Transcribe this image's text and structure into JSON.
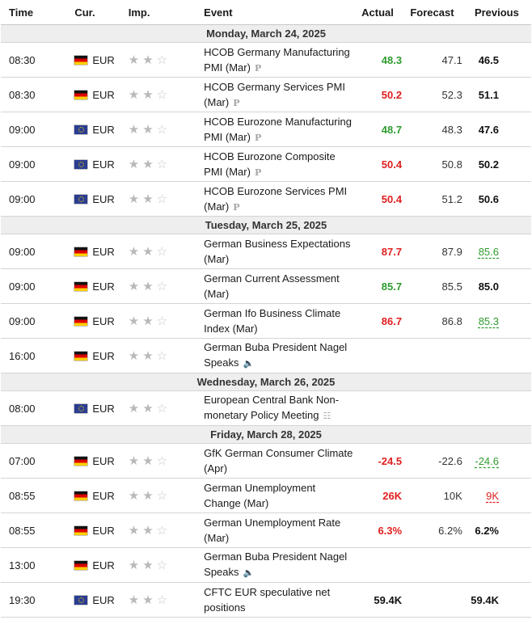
{
  "headers": {
    "time": "Time",
    "cur": "Cur.",
    "imp": "Imp.",
    "event": "Event",
    "actual": "Actual",
    "forecast": "Forecast",
    "previous": "Previous"
  },
  "days": [
    {
      "label": "Monday, March 24, 2025",
      "rows": [
        {
          "time": "08:30",
          "flag": "de",
          "cur": "EUR",
          "event": "HCOB Germany Manufacturing PMI (Mar)",
          "icon": "P",
          "actual": "48.3",
          "actual_trend": "up",
          "forecast": "47.1",
          "previous": "46.5",
          "prev_trend": "none"
        },
        {
          "time": "08:30",
          "flag": "de",
          "cur": "EUR",
          "event": "HCOB Germany Services PMI (Mar)",
          "icon": "P",
          "actual": "50.2",
          "actual_trend": "down",
          "forecast": "52.3",
          "previous": "51.1",
          "prev_trend": "none"
        },
        {
          "time": "09:00",
          "flag": "eu",
          "cur": "EUR",
          "event": "HCOB Eurozone Manufacturing PMI (Mar)",
          "icon": "P",
          "actual": "48.7",
          "actual_trend": "up",
          "forecast": "48.3",
          "previous": "47.6",
          "prev_trend": "none"
        },
        {
          "time": "09:00",
          "flag": "eu",
          "cur": "EUR",
          "event": "HCOB Eurozone Composite PMI (Mar)",
          "icon": "P",
          "actual": "50.4",
          "actual_trend": "down",
          "forecast": "50.8",
          "previous": "50.2",
          "prev_trend": "none"
        },
        {
          "time": "09:00",
          "flag": "eu",
          "cur": "EUR",
          "event": "HCOB Eurozone Services PMI (Mar)",
          "icon": "P",
          "actual": "50.4",
          "actual_trend": "down",
          "forecast": "51.2",
          "previous": "50.6",
          "prev_trend": "none"
        }
      ]
    },
    {
      "label": "Tuesday, March 25, 2025",
      "rows": [
        {
          "time": "09:00",
          "flag": "de",
          "cur": "EUR",
          "event": "German Business Expectations (Mar)",
          "icon": "",
          "actual": "87.7",
          "actual_trend": "down",
          "forecast": "87.9",
          "previous": "85.6",
          "prev_trend": "up"
        },
        {
          "time": "09:00",
          "flag": "de",
          "cur": "EUR",
          "event": "German Current Assessment (Mar)",
          "icon": "",
          "actual": "85.7",
          "actual_trend": "up",
          "forecast": "85.5",
          "previous": "85.0",
          "prev_trend": "none"
        },
        {
          "time": "09:00",
          "flag": "de",
          "cur": "EUR",
          "event": "German Ifo Business Climate Index (Mar)",
          "icon": "",
          "actual": "86.7",
          "actual_trend": "down",
          "forecast": "86.8",
          "previous": "85.3",
          "prev_trend": "up"
        },
        {
          "time": "16:00",
          "flag": "de",
          "cur": "EUR",
          "event": "German Buba President Nagel Speaks",
          "icon": "speaker",
          "actual": "",
          "actual_trend": "none",
          "forecast": "",
          "previous": "",
          "prev_trend": "none"
        }
      ]
    },
    {
      "label": "Wednesday, March 26, 2025",
      "rows": [
        {
          "time": "08:00",
          "flag": "eu",
          "cur": "EUR",
          "event": "European Central Bank Non-monetary Policy Meeting",
          "icon": "doc",
          "actual": "",
          "actual_trend": "none",
          "forecast": "",
          "previous": "",
          "prev_trend": "none"
        }
      ]
    },
    {
      "label": "Friday, March 28, 2025",
      "rows": [
        {
          "time": "07:00",
          "flag": "de",
          "cur": "EUR",
          "event": "GfK German Consumer Climate (Apr)",
          "icon": "",
          "actual": "-24.5",
          "actual_trend": "down",
          "forecast": "-22.6",
          "previous": "-24.6",
          "prev_trend": "up"
        },
        {
          "time": "08:55",
          "flag": "de",
          "cur": "EUR",
          "event": "German Unemployment Change (Mar)",
          "icon": "",
          "actual": "26K",
          "actual_trend": "down",
          "forecast": "10K",
          "previous": "9K",
          "prev_trend": "down"
        },
        {
          "time": "08:55",
          "flag": "de",
          "cur": "EUR",
          "event": "German Unemployment Rate (Mar)",
          "icon": "",
          "actual": "6.3%",
          "actual_trend": "down",
          "forecast": "6.2%",
          "previous": "6.2%",
          "prev_trend": "none"
        },
        {
          "time": "13:00",
          "flag": "de",
          "cur": "EUR",
          "event": "German Buba President Nagel Speaks",
          "icon": "speaker",
          "actual": "",
          "actual_trend": "none",
          "forecast": "",
          "previous": "",
          "prev_trend": "none"
        },
        {
          "time": "19:30",
          "flag": "eu",
          "cur": "EUR",
          "event": "CFTC EUR speculative net positions",
          "icon": "",
          "actual": "59.4K",
          "actual_trend": "neutral",
          "forecast": "",
          "previous": "59.4K",
          "prev_trend": "none"
        }
      ]
    }
  ],
  "importance": {
    "filled": 2,
    "total": 3
  },
  "colors": {
    "up": "#2e9c2e",
    "down": "#e02020",
    "day_bg": "#eeeeef"
  }
}
